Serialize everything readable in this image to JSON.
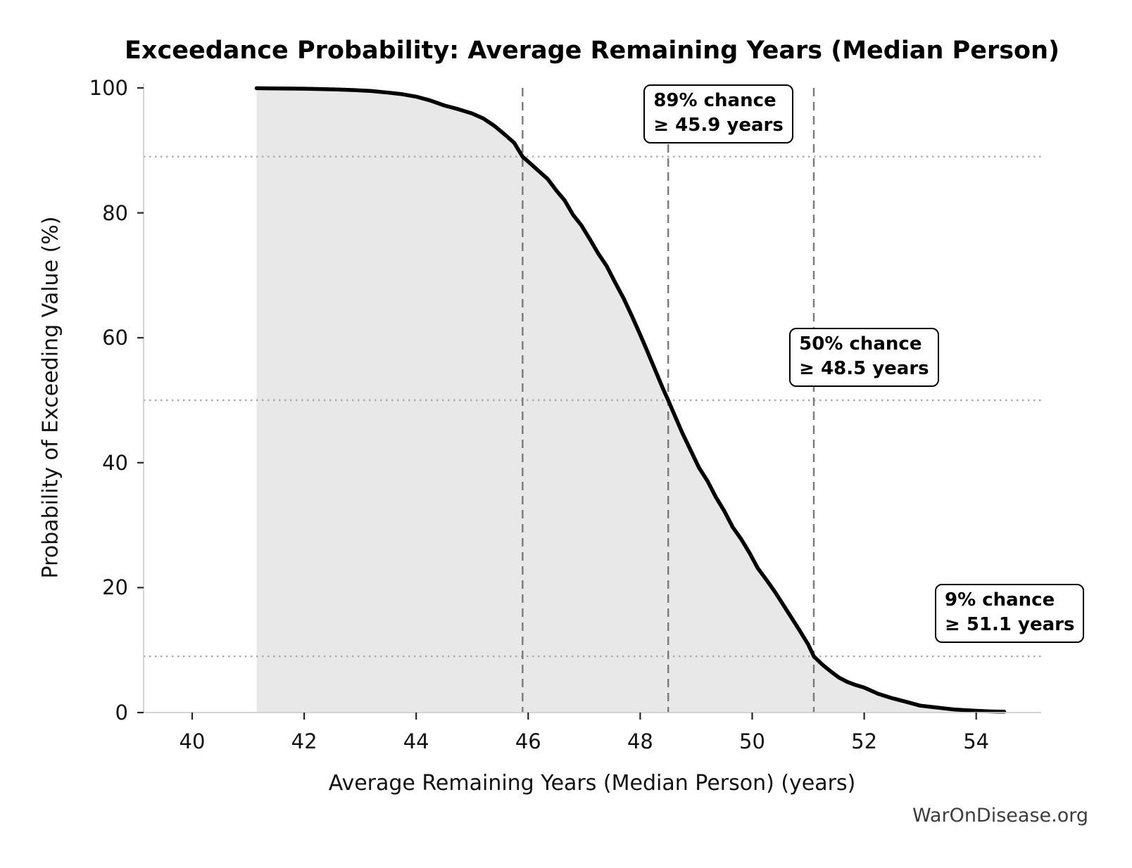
{
  "chart_data": {
    "type": "area",
    "title": "Exceedance Probability: Average Remaining Years (Median Person)",
    "xlabel": "Average Remaining Years (Median Person) (years)",
    "ylabel": "Probability of Exceeding Value (%)",
    "watermark": "WarOnDisease.org",
    "x_ticks": [
      40,
      42,
      44,
      46,
      48,
      50,
      52,
      54
    ],
    "y_ticks": [
      0,
      20,
      40,
      60,
      80,
      100
    ],
    "xlim": [
      39.13,
      55.17
    ],
    "ylim": [
      0,
      100
    ],
    "grid": "off",
    "legend": "none",
    "colors": {
      "curve": "#000000",
      "fill": "#e8e8e8",
      "dashed_vline": "#7a7a7a",
      "dotted_hline": "#ababab",
      "spine": "#cfcfcf",
      "tick": "#262626"
    },
    "series": [
      {
        "name": "exceedance-probability",
        "points": [
          [
            41.15,
            99.95
          ],
          [
            41.4,
            99.93
          ],
          [
            41.7,
            99.9
          ],
          [
            42.0,
            99.88
          ],
          [
            42.3,
            99.82
          ],
          [
            42.6,
            99.75
          ],
          [
            42.9,
            99.65
          ],
          [
            43.2,
            99.5
          ],
          [
            43.5,
            99.25
          ],
          [
            43.75,
            99.0
          ],
          [
            44.0,
            98.6
          ],
          [
            44.25,
            98.0
          ],
          [
            44.5,
            97.2
          ],
          [
            44.75,
            96.6
          ],
          [
            45.0,
            95.9
          ],
          [
            45.2,
            95.1
          ],
          [
            45.4,
            93.9
          ],
          [
            45.6,
            92.4
          ],
          [
            45.75,
            91.2
          ],
          [
            45.9,
            89.0
          ],
          [
            46.05,
            87.8
          ],
          [
            46.2,
            86.6
          ],
          [
            46.35,
            85.4
          ],
          [
            46.5,
            83.6
          ],
          [
            46.65,
            82.0
          ],
          [
            46.8,
            79.7
          ],
          [
            46.95,
            78.0
          ],
          [
            47.1,
            75.8
          ],
          [
            47.25,
            73.5
          ],
          [
            47.4,
            71.5
          ],
          [
            47.55,
            68.9
          ],
          [
            47.7,
            66.4
          ],
          [
            47.85,
            63.5
          ],
          [
            48.0,
            60.5
          ],
          [
            48.1,
            58.4
          ],
          [
            48.25,
            55.2
          ],
          [
            48.4,
            52.0
          ],
          [
            48.5,
            50.0
          ],
          [
            48.6,
            47.9
          ],
          [
            48.75,
            44.8
          ],
          [
            48.9,
            42.0
          ],
          [
            49.05,
            39.2
          ],
          [
            49.2,
            37.1
          ],
          [
            49.35,
            34.5
          ],
          [
            49.5,
            32.3
          ],
          [
            49.65,
            29.7
          ],
          [
            49.8,
            27.8
          ],
          [
            49.95,
            25.6
          ],
          [
            50.1,
            23.1
          ],
          [
            50.25,
            21.3
          ],
          [
            50.4,
            19.4
          ],
          [
            50.55,
            17.3
          ],
          [
            50.7,
            15.2
          ],
          [
            50.85,
            13.1
          ],
          [
            51.0,
            10.9
          ],
          [
            51.1,
            9.0
          ],
          [
            51.25,
            7.7
          ],
          [
            51.4,
            6.6
          ],
          [
            51.55,
            5.6
          ],
          [
            51.7,
            4.9
          ],
          [
            51.85,
            4.4
          ],
          [
            52.0,
            4.0
          ],
          [
            52.25,
            3.0
          ],
          [
            52.5,
            2.3
          ],
          [
            52.8,
            1.6
          ],
          [
            53.0,
            1.1
          ],
          [
            53.2,
            0.9
          ],
          [
            53.4,
            0.7
          ],
          [
            53.6,
            0.5
          ],
          [
            53.8,
            0.38
          ],
          [
            54.0,
            0.28
          ],
          [
            54.2,
            0.2
          ],
          [
            54.35,
            0.16
          ],
          [
            54.5,
            0.14
          ]
        ]
      }
    ],
    "annotations": [
      {
        "probability_pct": 89,
        "years": 45.9,
        "line1": "89% chance",
        "line2": "≥ 45.9 years"
      },
      {
        "probability_pct": 50,
        "years": 48.5,
        "line1": "50% chance",
        "line2": "≥ 48.5 years"
      },
      {
        "probability_pct": 9,
        "years": 51.1,
        "line1": "9% chance",
        "line2": "≥ 51.1 years"
      }
    ],
    "reference_lines": {
      "vertical_years": [
        45.9,
        48.5,
        51.1
      ],
      "vertical_style": "dashed",
      "horizontal_pct": [
        89,
        50,
        9
      ],
      "horizontal_style": "dotted"
    }
  }
}
